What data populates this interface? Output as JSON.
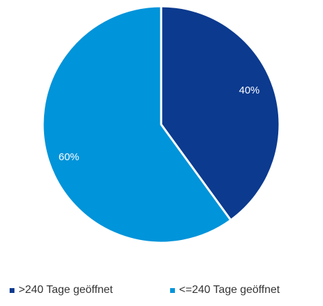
{
  "chart_data": {
    "type": "pie",
    "categories": [
      ">240 Tage geöffnet",
      "<=240 Tage geöffnet"
    ],
    "values": [
      40,
      60
    ],
    "data_labels": [
      "40%",
      "60%"
    ],
    "colors": [
      "#0b3a8f",
      "#0094da"
    ],
    "start_angle_deg": 0,
    "direction": "clockwise",
    "legend_position": "bottom"
  }
}
